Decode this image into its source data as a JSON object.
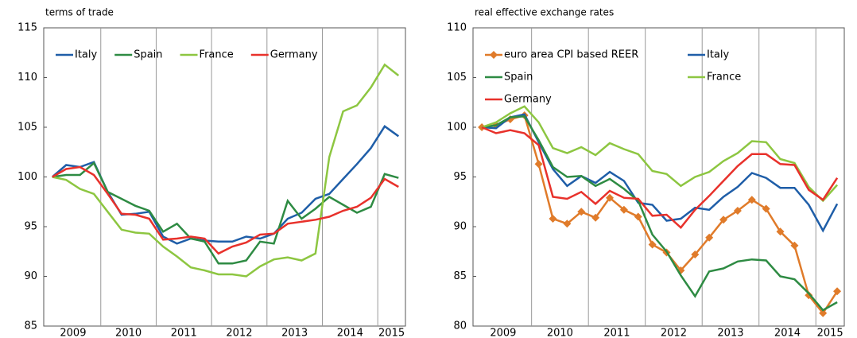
{
  "chart_data": [
    {
      "type": "line",
      "title": "terms of trade",
      "x": [
        2009.125,
        2009.375,
        2009.625,
        2009.875,
        2010.125,
        2010.375,
        2010.625,
        2010.875,
        2011.125,
        2011.375,
        2011.625,
        2011.875,
        2012.125,
        2012.375,
        2012.625,
        2012.875,
        2013.125,
        2013.375,
        2013.625,
        2013.875,
        2014.125,
        2014.375,
        2014.625,
        2014.875,
        2015.125,
        2015.375
      ],
      "xlim": [
        2008.97,
        2015.5
      ],
      "xticks": [
        {
          "value": 2009.5,
          "label": "2009"
        },
        {
          "value": 2010.5,
          "label": "2010"
        },
        {
          "value": 2011.5,
          "label": "2011"
        },
        {
          "value": 2012.5,
          "label": "2012"
        },
        {
          "value": 2013.5,
          "label": "2013"
        },
        {
          "value": 2014.5,
          "label": "2014"
        },
        {
          "value": 2015.25,
          "label": "2015"
        }
      ],
      "vlines": [
        2010,
        2011,
        2012,
        2013,
        2014,
        2015
      ],
      "ylim": [
        85,
        115
      ],
      "yticks": [
        85,
        90,
        95,
        100,
        105,
        110,
        115
      ],
      "legend_columns": 4,
      "series": [
        {
          "name": "Italy",
          "color": "#1f5ea8",
          "values": [
            100,
            101.2,
            101,
            101.5,
            98.5,
            96.2,
            96.3,
            96.5,
            94,
            93.3,
            93.8,
            93.6,
            93.5,
            93.5,
            94,
            93.8,
            94.3,
            95.8,
            96.4,
            97.8,
            98.3,
            99.8,
            101.3,
            102.9,
            105.1,
            104.1
          ]
        },
        {
          "name": "Spain",
          "color": "#2e8b43",
          "values": [
            100,
            100.2,
            100.2,
            101.4,
            98.5,
            97.8,
            97.1,
            96.6,
            94.5,
            95.3,
            93.8,
            93.5,
            91.3,
            91.3,
            91.6,
            93.5,
            93.3,
            97.6,
            95.8,
            96.8,
            98,
            97.2,
            96.4,
            97,
            100.3,
            99.9
          ]
        },
        {
          "name": "France",
          "color": "#8dc641",
          "values": [
            100,
            99.7,
            98.8,
            98.3,
            96.5,
            94.7,
            94.4,
            94.3,
            93,
            92,
            90.9,
            90.6,
            90.2,
            90.2,
            90,
            91,
            91.7,
            91.9,
            91.6,
            92.3,
            102,
            106.6,
            107.2,
            109,
            111.3,
            110.2
          ]
        },
        {
          "name": "Germany",
          "color": "#e8312b",
          "values": [
            100,
            100.8,
            101,
            100.2,
            98.3,
            96.3,
            96.2,
            95.8,
            93.7,
            93.8,
            94,
            93.8,
            92.3,
            93,
            93.4,
            94.2,
            94.3,
            95.3,
            95.5,
            95.7,
            96,
            96.6,
            97,
            97.9,
            99.8,
            99
          ]
        }
      ]
    },
    {
      "type": "line",
      "title": "real effective exchange rates",
      "x": [
        2009.125,
        2009.375,
        2009.625,
        2009.875,
        2010.125,
        2010.375,
        2010.625,
        2010.875,
        2011.125,
        2011.375,
        2011.625,
        2011.875,
        2012.125,
        2012.375,
        2012.625,
        2012.875,
        2013.125,
        2013.375,
        2013.625,
        2013.875,
        2014.125,
        2014.375,
        2014.625,
        2014.875,
        2015.125,
        2015.375
      ],
      "xlim": [
        2008.97,
        2015.5
      ],
      "xticks": [
        {
          "value": 2009.5,
          "label": "2009"
        },
        {
          "value": 2010.5,
          "label": "2010"
        },
        {
          "value": 2011.5,
          "label": "2011"
        },
        {
          "value": 2012.5,
          "label": "2012"
        },
        {
          "value": 2013.5,
          "label": "2013"
        },
        {
          "value": 2014.5,
          "label": "2014"
        },
        {
          "value": 2015.25,
          "label": "2015"
        }
      ],
      "vlines": [
        2010,
        2011,
        2012,
        2013,
        2014,
        2015
      ],
      "ylim": [
        80,
        110
      ],
      "yticks": [
        80,
        85,
        90,
        95,
        100,
        105,
        110
      ],
      "legend_columns": 2,
      "series": [
        {
          "name": "euro area CPI based REER",
          "color": "#e07b2a",
          "marker": "diamond",
          "values": [
            100,
            100.2,
            100.8,
            101.2,
            96.3,
            90.8,
            90.3,
            91.5,
            90.9,
            92.9,
            91.7,
            91,
            88.2,
            87.4,
            85.6,
            87.2,
            88.9,
            90.7,
            91.6,
            92.7,
            91.8,
            89.5,
            88.1,
            83.1,
            81.3,
            83.5
          ]
        },
        {
          "name": "Italy",
          "color": "#1f5ea8",
          "values": [
            100,
            99.9,
            101,
            101.3,
            98.5,
            95.8,
            94.1,
            95.1,
            94.4,
            95.5,
            94.6,
            92.4,
            92.2,
            90.6,
            90.8,
            91.9,
            91.7,
            93,
            94,
            95.4,
            94.9,
            93.9,
            93.9,
            92.2,
            89.6,
            92.3
          ]
        },
        {
          "name": "Spain",
          "color": "#2e8b43",
          "values": [
            100,
            100.2,
            101,
            101.1,
            98.7,
            96,
            95,
            95.1,
            94.1,
            94.8,
            93.8,
            92.6,
            89.2,
            87.5,
            85.1,
            83,
            85.5,
            85.8,
            86.5,
            86.7,
            86.6,
            85,
            84.7,
            83.3,
            81.6,
            82.4
          ]
        },
        {
          "name": "France",
          "color": "#8dc641",
          "values": [
            100,
            100.5,
            101.4,
            102.1,
            100.5,
            97.9,
            97.4,
            98,
            97.2,
            98.4,
            97.8,
            97.3,
            95.6,
            95.3,
            94.1,
            95,
            95.5,
            96.6,
            97.4,
            98.6,
            98.5,
            96.8,
            96.4,
            94,
            92.6,
            94.2
          ]
        },
        {
          "name": "Germany",
          "color": "#e8312b",
          "values": [
            100,
            99.4,
            99.7,
            99.4,
            98.2,
            93,
            92.8,
            93.5,
            92.3,
            93.6,
            92.9,
            92.8,
            91.1,
            91.2,
            89.9,
            91.7,
            93.1,
            94.6,
            96.1,
            97.3,
            97.3,
            96.3,
            96.2,
            93.7,
            92.7,
            94.9
          ]
        }
      ]
    }
  ]
}
